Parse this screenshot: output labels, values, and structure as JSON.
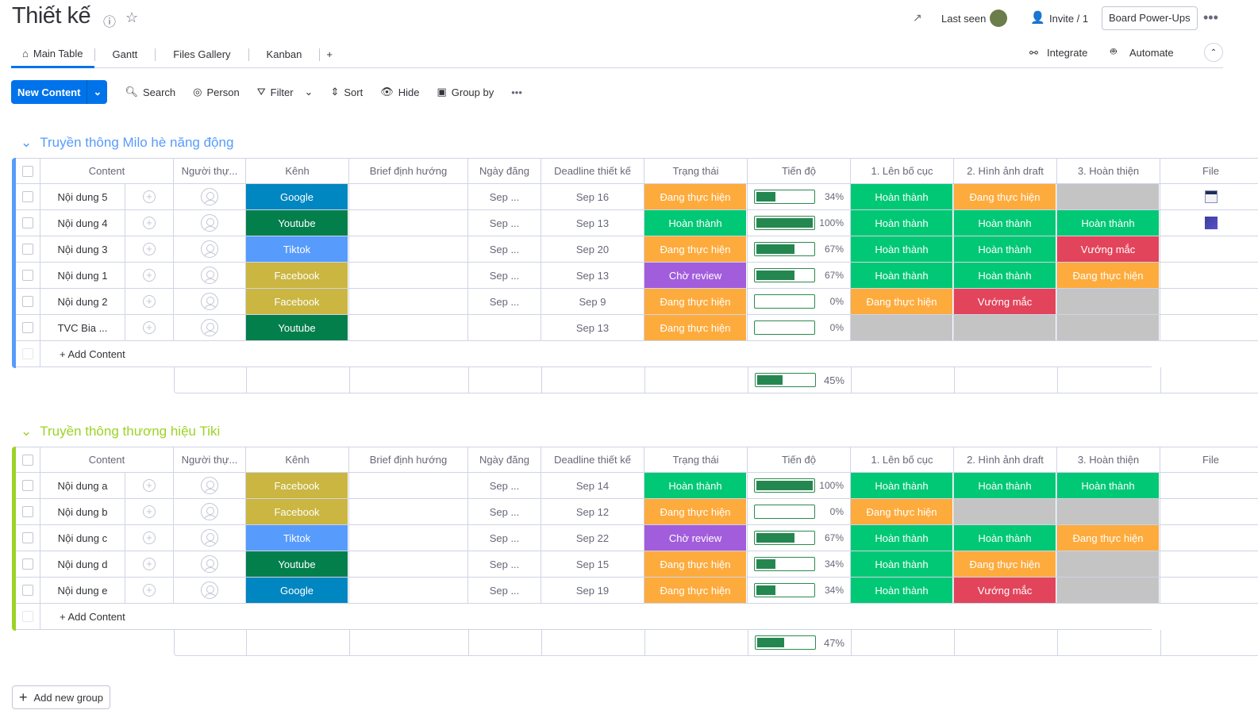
{
  "header": {
    "title": "Thiết kế",
    "last_seen": "Last seen",
    "invite": "Invite / 1",
    "power_ups": "Board Power-Ups",
    "integrate": "Integrate",
    "automate": "Automate"
  },
  "tabs": [
    {
      "label": "Main Table"
    },
    {
      "label": "Gantt"
    },
    {
      "label": "Files Gallery"
    },
    {
      "label": "Kanban"
    },
    {
      "label": "+"
    }
  ],
  "toolbar": {
    "new": "New Content",
    "search": "Search",
    "person": "Person",
    "filter": "Filter",
    "sort": "Sort",
    "hide": "Hide",
    "group_by": "Group by"
  },
  "columns": [
    "Content",
    "Người thự...",
    "Kênh",
    "Brief định hướng",
    "Ngày đăng",
    "Deadline thiết kế",
    "Trạng thái",
    "Tiến độ",
    "1. Lên bố cục",
    "2. Hình ảnh draft",
    "3. Hoàn thiện",
    "File"
  ],
  "colors": {
    "Google": "#0086c0",
    "Youtube": "#037f4c",
    "Tiktok": "#579bfc",
    "Facebook": "#cab641",
    "Đang thực hiện": "#fdab3d",
    "Hoàn thành": "#00c875",
    "Chờ review": "#a25ddc",
    "Vướng mắc": "#e2445c",
    "": "#c4c4c4"
  },
  "groups": [
    {
      "title": "Truyền thông Milo hè năng động",
      "color": "#579bfc",
      "summary": 45,
      "summary_label": "45%",
      "add": "+ Add Content",
      "rows": [
        {
          "name": "Nội dung 5",
          "channel": "Google",
          "post": "Sep ...",
          "deadline": "Sep 16",
          "status": "Đang thực hiện",
          "progress": 34,
          "progress_label": "34%",
          "s1": "Hoàn thành",
          "s2": "Đang thực hiện",
          "s3": "",
          "file": "doc"
        },
        {
          "name": "Nội dung 4",
          "channel": "Youtube",
          "post": "Sep ...",
          "deadline": "Sep 13",
          "status": "Hoàn thành",
          "progress": 100,
          "progress_label": "100%",
          "s1": "Hoàn thành",
          "s2": "Hoàn thành",
          "s3": "Hoàn thành",
          "file": "img"
        },
        {
          "name": "Nội dung 3",
          "channel": "Tiktok",
          "post": "Sep ...",
          "deadline": "Sep 20",
          "status": "Đang thực hiện",
          "progress": 67,
          "progress_label": "67%",
          "s1": "Hoàn thành",
          "s2": "Hoàn thành",
          "s3": "Vướng mắc",
          "file": ""
        },
        {
          "name": "Nội dung 1",
          "channel": "Facebook",
          "post": "Sep ...",
          "deadline": "Sep 13",
          "status": "Chờ review",
          "progress": 67,
          "progress_label": "67%",
          "s1": "Hoàn thành",
          "s2": "Hoàn thành",
          "s3": "Đang thực hiện",
          "file": ""
        },
        {
          "name": "Nội dung 2",
          "channel": "Facebook",
          "post": "Sep ...",
          "deadline": "Sep 9",
          "status": "Đang thực hiện",
          "progress": 0,
          "progress_label": "0%",
          "s1": "Đang thực hiện",
          "s2": "Vướng mắc",
          "s3": "",
          "file": ""
        },
        {
          "name": "TVC Bia ...",
          "channel": "Youtube",
          "post": "",
          "deadline": "Sep 13",
          "status": "Đang thực hiện",
          "progress": 0,
          "progress_label": "0%",
          "s1": "",
          "s2": "",
          "s3": "",
          "file": ""
        }
      ]
    },
    {
      "title": "Truyền thông thương hiệu Tiki",
      "color": "#9cd326",
      "summary": 47,
      "summary_label": "47%",
      "add": "+ Add Content",
      "rows": [
        {
          "name": "Nội dung a",
          "channel": "Facebook",
          "post": "Sep ...",
          "deadline": "Sep 14",
          "status": "Hoàn thành",
          "progress": 100,
          "progress_label": "100%",
          "s1": "Hoàn thành",
          "s2": "Hoàn thành",
          "s3": "Hoàn thành",
          "file": ""
        },
        {
          "name": "Nội dung b",
          "channel": "Facebook",
          "post": "Sep ...",
          "deadline": "Sep 12",
          "status": "Đang thực hiện",
          "progress": 0,
          "progress_label": "0%",
          "s1": "Đang thực hiện",
          "s2": "",
          "s3": "",
          "file": ""
        },
        {
          "name": "Nội dung c",
          "channel": "Tiktok",
          "post": "Sep ...",
          "deadline": "Sep 22",
          "status": "Chờ review",
          "progress": 67,
          "progress_label": "67%",
          "s1": "Hoàn thành",
          "s2": "Hoàn thành",
          "s3": "Đang thực hiện",
          "file": ""
        },
        {
          "name": "Nội dung d",
          "channel": "Youtube",
          "post": "Sep ...",
          "deadline": "Sep 15",
          "status": "Đang thực hiện",
          "progress": 34,
          "progress_label": "34%",
          "s1": "Hoàn thành",
          "s2": "Đang thực hiện",
          "s3": "",
          "file": ""
        },
        {
          "name": "Nội dung e",
          "channel": "Google",
          "post": "Sep ...",
          "deadline": "Sep 19",
          "status": "Đang thực hiện",
          "progress": 34,
          "progress_label": "34%",
          "s1": "Hoàn thành",
          "s2": "Vướng mắc",
          "s3": "",
          "file": ""
        }
      ]
    }
  ],
  "add_group": "Add new group"
}
